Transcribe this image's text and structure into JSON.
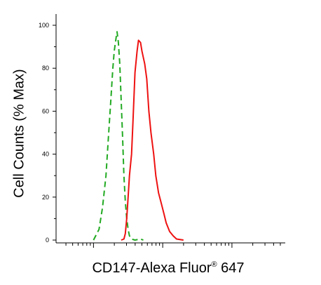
{
  "chart_data": {
    "type": "line",
    "xlabel_main": "CD147-Alexa Fluor",
    "xlabel_sup": "®",
    "xlabel_tail": " 647",
    "ylabel": "Cell Counts (% Max)",
    "ylim": [
      0,
      100
    ],
    "y_ticks": [
      "0",
      "20",
      "40",
      "60",
      "80",
      "100"
    ],
    "x_scale": "log",
    "xlim_decades": [
      -0.5,
      2.75
    ],
    "grid": false,
    "series": [
      {
        "color": "#22aa22",
        "dash": "dashed",
        "points": [
          [
            0.0,
            0
          ],
          [
            0.08,
            5
          ],
          [
            0.13,
            15
          ],
          [
            0.18,
            30
          ],
          [
            0.22,
            50
          ],
          [
            0.25,
            65
          ],
          [
            0.28,
            80
          ],
          [
            0.3,
            88
          ],
          [
            0.33,
            95
          ],
          [
            0.34,
            97
          ],
          [
            0.36,
            92
          ],
          [
            0.38,
            82
          ],
          [
            0.4,
            65
          ],
          [
            0.42,
            48
          ],
          [
            0.44,
            30
          ],
          [
            0.46,
            18
          ],
          [
            0.48,
            10
          ],
          [
            0.5,
            5
          ],
          [
            0.52,
            2
          ],
          [
            0.55,
            0.5
          ],
          [
            0.6,
            0
          ],
          [
            0.68,
            0.5
          ],
          [
            0.72,
            0
          ]
        ]
      },
      {
        "color": "#ee1111",
        "dash": "solid",
        "points": [
          [
            0.4,
            0
          ],
          [
            0.44,
            0.5
          ],
          [
            0.46,
            3
          ],
          [
            0.48,
            10
          ],
          [
            0.5,
            20
          ],
          [
            0.52,
            30
          ],
          [
            0.55,
            40
          ],
          [
            0.57,
            55
          ],
          [
            0.6,
            78
          ],
          [
            0.63,
            88
          ],
          [
            0.65,
            93
          ],
          [
            0.68,
            92
          ],
          [
            0.7,
            88
          ],
          [
            0.72,
            85
          ],
          [
            0.74,
            82
          ],
          [
            0.77,
            75
          ],
          [
            0.8,
            60
          ],
          [
            0.83,
            50
          ],
          [
            0.87,
            40
          ],
          [
            0.9,
            30
          ],
          [
            0.94,
            22
          ],
          [
            0.98,
            17
          ],
          [
            1.02,
            12
          ],
          [
            1.05,
            8
          ],
          [
            1.1,
            4
          ],
          [
            1.15,
            2
          ],
          [
            1.2,
            0.5
          ],
          [
            1.3,
            0
          ]
        ]
      }
    ]
  }
}
